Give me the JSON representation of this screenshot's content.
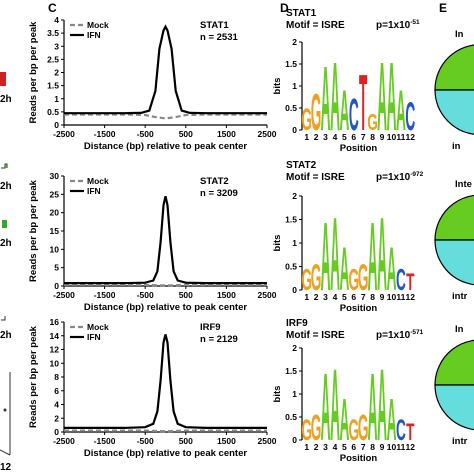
{
  "panel_labels": {
    "c": "C",
    "d": "D",
    "e": "E"
  },
  "left_fragment": {
    "labels": [
      "2h",
      "2h",
      "2h",
      "2h",
      "12"
    ],
    "colors": {
      "red": "#cc2222",
      "green": "#33aa33",
      "dark": "#333333"
    }
  },
  "legend": {
    "mock": "Mock",
    "ifn": "IFN"
  },
  "colors": {
    "ifn": "#000000",
    "mock": "#888888",
    "logo_A": "#66cc22",
    "logo_G": "#f0a020",
    "logo_C": "#2255cc",
    "logo_T": "#dd2222",
    "pie_green": "#66cc22",
    "pie_cyan": "#66dddd"
  },
  "chart_data": [
    {
      "type": "line",
      "title": "STAT1",
      "subtitle": "n = 2531",
      "xlabel": "Distance (bp) relative to peak center",
      "ylabel": "Reads per bp per peak",
      "xlim": [
        -2500,
        2500
      ],
      "ylim": [
        0,
        4
      ],
      "xticks": [
        "-2500",
        "-1500",
        "-500",
        "500",
        "1500",
        "2500"
      ],
      "yticks": [
        "0",
        "0.5",
        "1",
        "1.5",
        "2",
        "2.5",
        "3",
        "3.5",
        "4"
      ],
      "series": [
        {
          "name": "Mock",
          "x": [
            -2500,
            -2000,
            -1000,
            -500,
            -250,
            0,
            250,
            500,
            1000,
            2000,
            2500
          ],
          "y": [
            0.4,
            0.4,
            0.4,
            0.38,
            0.3,
            0.25,
            0.3,
            0.38,
            0.4,
            0.4,
            0.4
          ]
        },
        {
          "name": "IFN",
          "x": [
            -2500,
            -2000,
            -1000,
            -600,
            -400,
            -250,
            -150,
            -50,
            0,
            50,
            150,
            250,
            400,
            600,
            1000,
            2000,
            2500
          ],
          "y": [
            0.45,
            0.45,
            0.45,
            0.46,
            0.55,
            1.3,
            2.9,
            3.6,
            3.75,
            3.6,
            2.9,
            1.3,
            0.55,
            0.46,
            0.45,
            0.45,
            0.45
          ]
        }
      ]
    },
    {
      "type": "line",
      "title": "STAT2",
      "subtitle": "n = 3209",
      "xlabel": "Distance (bp) relative to peak center",
      "ylabel": "Reads per bp per peak",
      "xlim": [
        -2500,
        2500
      ],
      "ylim": [
        0,
        30
      ],
      "xticks": [
        "-2500",
        "-1500",
        "-500",
        "500",
        "1500",
        "2500"
      ],
      "yticks": [
        "0",
        "5",
        "10",
        "15",
        "20",
        "25",
        "30"
      ],
      "series": [
        {
          "name": "Mock",
          "x": [
            -2500,
            -1000,
            -500,
            -200,
            0,
            200,
            500,
            1000,
            2500
          ],
          "y": [
            0.3,
            0.3,
            0.3,
            0.2,
            0.2,
            0.2,
            0.3,
            0.3,
            0.3
          ]
        },
        {
          "name": "IFN",
          "x": [
            -2500,
            -1000,
            -500,
            -300,
            -200,
            -120,
            -50,
            0,
            50,
            120,
            200,
            300,
            500,
            1000,
            2500
          ],
          "y": [
            0.8,
            0.8,
            0.9,
            1.5,
            4,
            12,
            22,
            24.5,
            22,
            12,
            4,
            1.5,
            0.9,
            0.8,
            0.8
          ]
        }
      ]
    },
    {
      "type": "line",
      "title": "IRF9",
      "subtitle": "n = 2129",
      "xlabel": "Distance (bp) relative to peak center",
      "ylabel": "Reads per bp per peak",
      "xlim": [
        -2500,
        2500
      ],
      "ylim": [
        0,
        16
      ],
      "xticks": [
        "-2500",
        "-1500",
        "-500",
        "500",
        "1500",
        "2500"
      ],
      "yticks": [
        "0",
        "2",
        "4",
        "6",
        "8",
        "10",
        "12",
        "14",
        "16"
      ],
      "series": [
        {
          "name": "Mock",
          "x": [
            -2500,
            -1000,
            -500,
            -200,
            0,
            200,
            500,
            1000,
            2500
          ],
          "y": [
            0.2,
            0.2,
            0.2,
            0.15,
            0.1,
            0.15,
            0.2,
            0.2,
            0.2
          ]
        },
        {
          "name": "IFN",
          "x": [
            -2500,
            -1000,
            -500,
            -300,
            -200,
            -120,
            -50,
            0,
            50,
            120,
            200,
            300,
            500,
            1000,
            2500
          ],
          "y": [
            0.6,
            0.6,
            0.7,
            1.2,
            3,
            7.5,
            13,
            14.2,
            13,
            7.5,
            3,
            1.2,
            0.7,
            0.6,
            0.6
          ]
        }
      ]
    }
  ],
  "motifs": [
    {
      "factor": "STAT1",
      "motif": "Motif = ISRE",
      "p": "p=1x10",
      "exp": "-51",
      "ylabel": "bits",
      "xlabel": "Position",
      "yticks": [
        "0",
        "0.5",
        "1",
        "1.5",
        "2"
      ],
      "positions": [
        "1",
        "2",
        "3",
        "4",
        "5",
        "6",
        "7",
        "8",
        "9",
        "10",
        "11",
        "12"
      ],
      "letters": [
        "G",
        "G",
        "A",
        "A",
        "A",
        "C",
        "T",
        "G",
        "A",
        "A",
        "A",
        "C"
      ],
      "heights": [
        0.55,
        0.9,
        1.6,
        1.7,
        1.0,
        0.8,
        1.4,
        0.4,
        1.7,
        1.7,
        1.0,
        0.7
      ]
    },
    {
      "factor": "STAT2",
      "motif": "Motif = ISRE",
      "p": "p=1x10",
      "exp": "-972",
      "ylabel": "bits",
      "xlabel": "Position",
      "yticks": [
        "0",
        "0.5",
        "1",
        "1.5",
        "2"
      ],
      "positions": [
        "1",
        "2",
        "3",
        "4",
        "5",
        "6",
        "7",
        "8",
        "9",
        "10",
        "11",
        "12"
      ],
      "letters": [
        "G",
        "G",
        "A",
        "A",
        "A",
        "G",
        "G",
        "A",
        "A",
        "A",
        "C",
        "T"
      ],
      "heights": [
        0.5,
        0.6,
        1.6,
        1.7,
        1.0,
        0.5,
        0.6,
        1.6,
        1.7,
        1.0,
        0.5,
        0.4
      ]
    },
    {
      "factor": "IRF9",
      "motif": "Motif = ISRE",
      "p": "p=1x10",
      "exp": "-571",
      "ylabel": "bits",
      "xlabel": "Position",
      "yticks": [
        "0",
        "0.5",
        "1",
        "1.5",
        "2"
      ],
      "positions": [
        "1",
        "2",
        "3",
        "4",
        "5",
        "6",
        "7",
        "8",
        "9",
        "10",
        "11",
        "12"
      ],
      "letters": [
        "G",
        "G",
        "A",
        "A",
        "A",
        "G",
        "G",
        "A",
        "A",
        "A",
        "C",
        "T"
      ],
      "heights": [
        0.5,
        0.6,
        1.6,
        1.7,
        1.0,
        0.5,
        0.6,
        1.6,
        1.7,
        1.0,
        0.5,
        0.4
      ]
    }
  ],
  "pies": [
    {
      "label_top": "In",
      "label_bottom": "in",
      "fractions": [
        0.52,
        0.48
      ]
    },
    {
      "label_top": "Inte",
      "label_bottom": "intr",
      "fractions": [
        0.6,
        0.4
      ]
    },
    {
      "label_top": "In",
      "label_bottom": "intr",
      "fractions": [
        0.58,
        0.42
      ]
    }
  ]
}
